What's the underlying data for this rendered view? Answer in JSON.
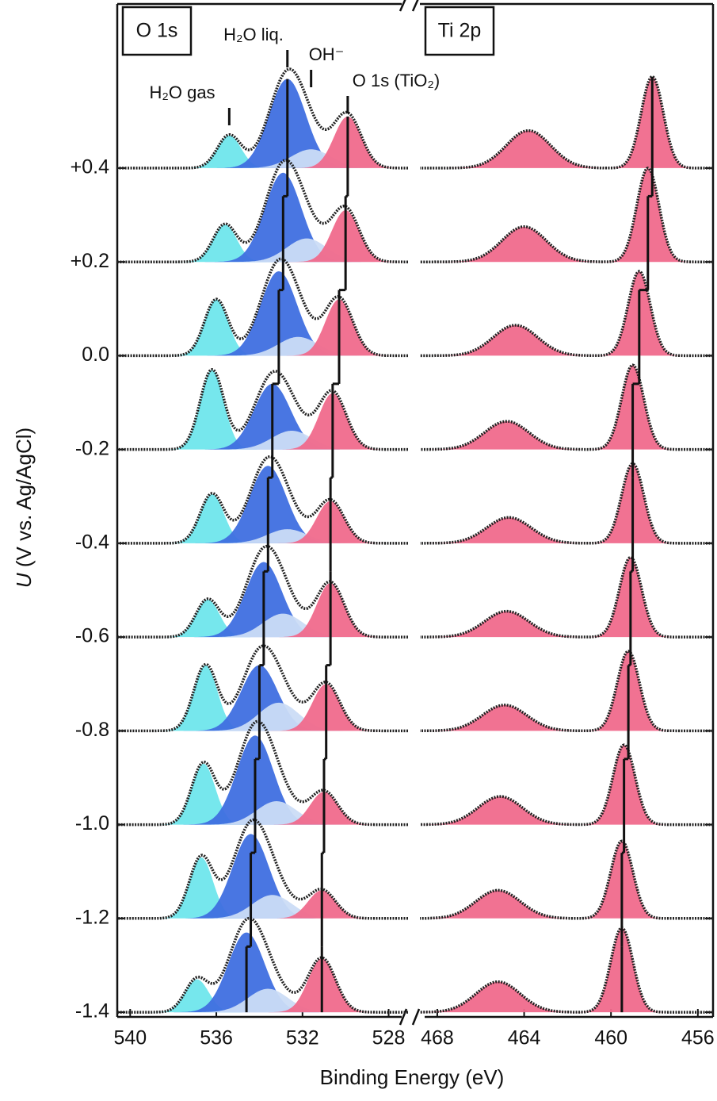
{
  "chart_data": {
    "type": "stacked-spectra",
    "y_label_symbol": "U",
    "y_label_unit": "(V vs. Ag/AgCl)",
    "x_label": "Binding Energy (eV)",
    "ylim": [
      -1.41,
      0.75
    ],
    "yticks": [
      {
        "value": 0.4,
        "label": "+0.4"
      },
      {
        "value": 0.2,
        "label": "+0.2"
      },
      {
        "value": 0,
        "label": "0.0"
      },
      -0.2,
      -0.4,
      -0.6,
      -0.8,
      {
        "value": -1,
        "label": "-1.0"
      },
      -1.2,
      -1.4
    ],
    "panels": [
      {
        "label": "O 1s",
        "xlim": [
          540.6,
          527.1
        ],
        "xticks": [
          540,
          536,
          532,
          528
        ],
        "components": [
          {
            "name": "H₂O gas",
            "color": "#6fe6ec",
            "fwhm": 1.3,
            "guide_line": false,
            "centers": [
              535.4,
              535.6,
              536.0,
              536.2,
              536.2,
              536.4,
              536.5,
              536.6,
              536.7,
              536.9
            ],
            "heights": [
              0.07,
              0.08,
              0.12,
              0.17,
              0.105,
              0.08,
              0.14,
              0.13,
              0.13,
              0.07
            ]
          },
          {
            "name": "H₂O liq.",
            "color": "#3f6fe0",
            "fwhm": 2.0,
            "guide_line": true,
            "centers": [
              532.7,
              532.9,
              533.1,
              533.4,
              533.6,
              533.8,
              534.0,
              534.2,
              534.4,
              534.6
            ],
            "heights": [
              0.19,
              0.19,
              0.18,
              0.14,
              0.165,
              0.16,
              0.14,
              0.19,
              0.18,
              0.17
            ]
          },
          {
            "name": "OH⁻",
            "color": "#cbdcf5",
            "fwhm": 2.2,
            "guide_line": false,
            "centers": [
              531.6,
              531.8,
              532.2,
              532.5,
              532.7,
              532.9,
              533.1,
              533.2,
              533.4,
              533.6
            ],
            "heights": [
              0.04,
              0.05,
              0.04,
              0.04,
              0.03,
              0.05,
              0.06,
              0.05,
              0.05,
              0.05
            ]
          },
          {
            "name": "O 1s (TiO₂)",
            "color": "#f06a8c",
            "fwhm": 1.5,
            "guide_line": true,
            "centers": [
              529.9,
              530.0,
              530.3,
              530.6,
              530.7,
              530.7,
              530.9,
              531.0,
              531.1,
              531.1
            ],
            "heights": [
              0.11,
              0.11,
              0.12,
              0.12,
              0.09,
              0.115,
              0.1,
              0.07,
              0.06,
              0.115
            ]
          }
        ]
      },
      {
        "label": "Ti 2p",
        "xlim": [
          468.8,
          455.3
        ],
        "xticks": [
          468,
          464,
          460,
          456
        ],
        "components": [
          {
            "color": "#f06a8c",
            "fwhm": 2.4,
            "guide_line": false,
            "centers": [
              463.8,
              464.0,
              464.4,
              464.8,
              464.7,
              464.8,
              464.9,
              465.1,
              465.2,
              465.2
            ],
            "heights": [
              0.08,
              0.075,
              0.065,
              0.06,
              0.055,
              0.055,
              0.055,
              0.06,
              0.06,
              0.065
            ]
          },
          {
            "color": "#f06a8c",
            "fwhm": 1.2,
            "guide_line": true,
            "centers": [
              458.1,
              458.3,
              458.7,
              459.0,
              459.0,
              459.1,
              459.2,
              459.4,
              459.5,
              459.5
            ],
            "heights": [
              0.195,
              0.2,
              0.18,
              0.18,
              0.17,
              0.17,
              0.17,
              0.17,
              0.165,
              0.18
            ]
          }
        ]
      }
    ]
  }
}
